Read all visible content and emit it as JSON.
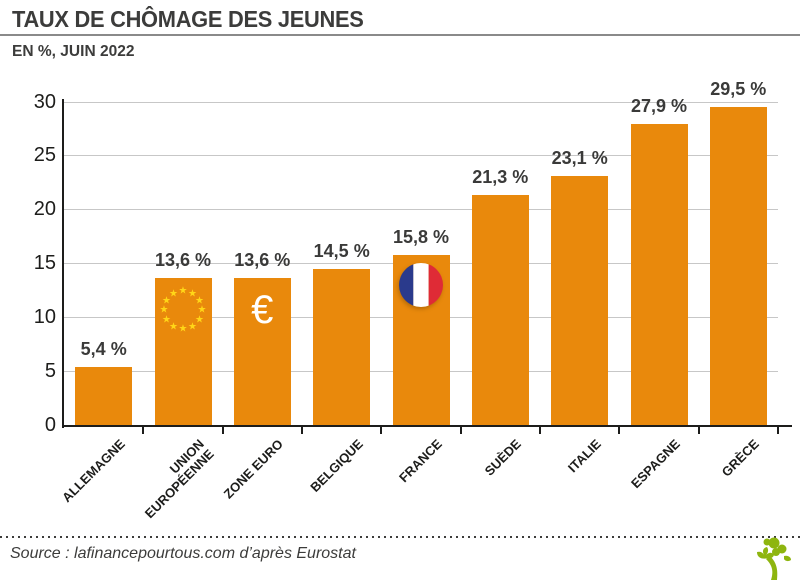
{
  "header": {
    "title": "TAUX DE CHÔMAGE DES JEUNES",
    "subtitle": "EN %, JUIN 2022"
  },
  "footer": {
    "source": "Source : lafinancepourtous.com d’après Eurostat"
  },
  "chart_data": {
    "type": "bar",
    "title": "TAUX DE CHÔMAGE DES JEUNES",
    "subtitle": "EN %, JUIN 2022",
    "unit": "%",
    "categories": [
      "ALLEMAGNE",
      "UNION\nEUROPÉENNE",
      "ZONE EURO",
      "BELGIQUE",
      "FRANCE",
      "SUÈDE",
      "ITALIE",
      "ESPAGNE",
      "GRÈCE"
    ],
    "values": [
      5.4,
      13.6,
      13.6,
      14.5,
      15.8,
      21.3,
      23.1,
      27.9,
      29.5
    ],
    "labels": [
      "5,4 %",
      "13,6 %",
      "13,6 %",
      "14,5 %",
      "15,8 %",
      "21,3 %",
      "23,1 %",
      "27,9 %",
      "29,5 %"
    ],
    "ylim": [
      0,
      30
    ],
    "yticks": [
      0,
      5,
      10,
      15,
      20,
      25,
      30
    ],
    "grid": true,
    "legend": "none",
    "colors": {
      "bar": "#E9890C",
      "grid": "#C7C7C7",
      "axis": "#1D1D1B",
      "value_label": "#3A3A39",
      "eu_star": "#FFD617",
      "euro_glyph": "#FFFFFF",
      "flag_blue": "#2A3A8C",
      "flag_white": "#FFFFFF",
      "flag_red": "#DF2B36",
      "logo_green": "#8EB50F"
    },
    "bar_icons": [
      {
        "bar_index": 1,
        "icon": "eu-stars-icon"
      },
      {
        "bar_index": 2,
        "icon": "euro-icon",
        "glyph": "€"
      },
      {
        "bar_index": 4,
        "icon": "france-flag-icon"
      }
    ]
  }
}
